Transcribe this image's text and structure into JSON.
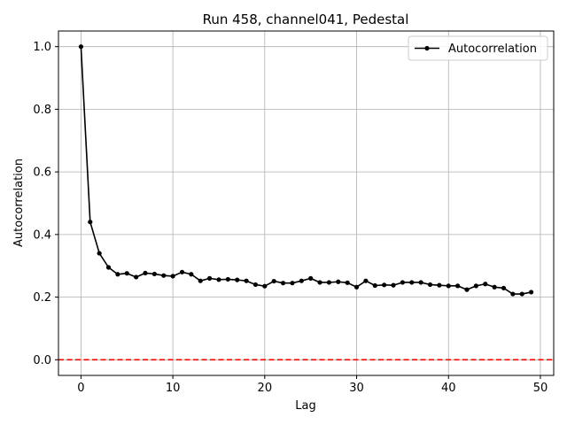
{
  "chart_data": {
    "type": "line",
    "title": "Run 458, channel041, Pedestal",
    "xlabel": "Lag",
    "ylabel": "Autocorrelation",
    "xlim": [
      -2.45,
      51.45
    ],
    "ylim": [
      -0.05,
      1.05
    ],
    "xticks": [
      0,
      10,
      20,
      30,
      40,
      50
    ],
    "yticks": [
      0.0,
      0.2,
      0.4,
      0.6,
      0.8,
      1.0
    ],
    "xtick_labels": [
      "0",
      "10",
      "20",
      "30",
      "40",
      "50"
    ],
    "ytick_labels": [
      "0.0",
      "0.2",
      "0.4",
      "0.6",
      "0.8",
      "1.0"
    ],
    "grid": true,
    "legend_position": "top-right",
    "series": [
      {
        "name": "Autocorrelation",
        "color": "#000000",
        "marker": "circle",
        "x": [
          0,
          1,
          2,
          3,
          4,
          5,
          6,
          7,
          8,
          9,
          10,
          11,
          12,
          13,
          14,
          15,
          16,
          17,
          18,
          19,
          20,
          21,
          22,
          23,
          24,
          25,
          26,
          27,
          28,
          29,
          30,
          31,
          32,
          33,
          34,
          35,
          36,
          37,
          38,
          39,
          40,
          41,
          42,
          43,
          44,
          45,
          46,
          47,
          48,
          49
        ],
        "y": [
          1.0,
          0.44,
          0.34,
          0.295,
          0.273,
          0.276,
          0.264,
          0.277,
          0.274,
          0.269,
          0.267,
          0.28,
          0.273,
          0.252,
          0.26,
          0.256,
          0.257,
          0.255,
          0.252,
          0.24,
          0.235,
          0.251,
          0.245,
          0.245,
          0.252,
          0.26,
          0.247,
          0.247,
          0.249,
          0.246,
          0.232,
          0.252,
          0.237,
          0.239,
          0.238,
          0.247,
          0.247,
          0.247,
          0.24,
          0.238,
          0.236,
          0.236,
          0.224,
          0.236,
          0.242,
          0.232,
          0.229,
          0.21,
          0.21,
          0.216
        ]
      }
    ],
    "reference_line": {
      "y": 0.0,
      "color": "#ff0000",
      "style": "dashed"
    }
  }
}
